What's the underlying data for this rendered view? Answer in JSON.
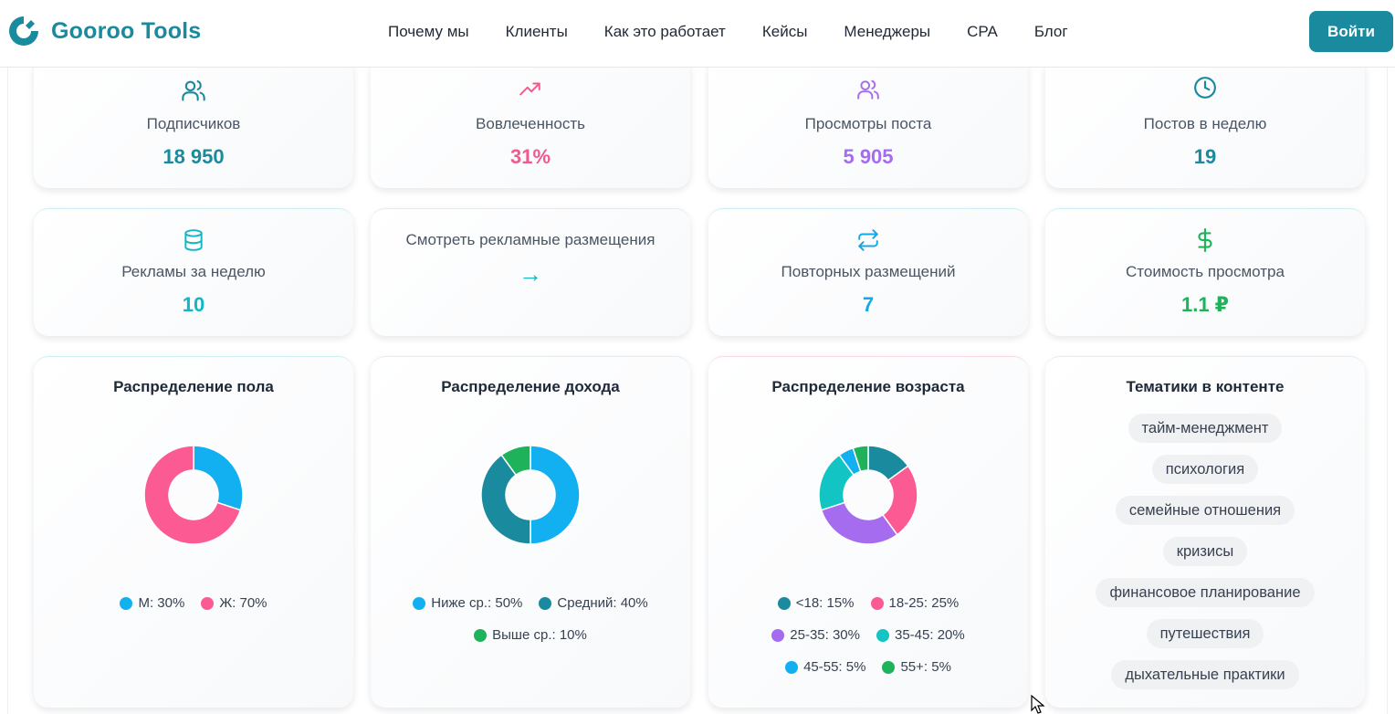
{
  "header": {
    "brand": "Gooroo Tools",
    "nav": [
      "Почему мы",
      "Клиенты",
      "Как это работает",
      "Кейсы",
      "Менеджеры",
      "CPA",
      "Блог"
    ],
    "login": "Войти"
  },
  "stats": [
    {
      "label": "Подписчиков",
      "value": "18 950",
      "color": "#1a8a9e",
      "icon": "users-icon"
    },
    {
      "label": "Вовлеченность",
      "value": "31%",
      "color": "#f05a8d",
      "icon": "trending-up-icon"
    },
    {
      "label": "Просмотры поста",
      "value": "5 905",
      "color": "#a56cf0",
      "icon": "users-icon"
    },
    {
      "label": "Постов в неделю",
      "value": "19",
      "color": "#1a8a9e",
      "icon": "clock-icon"
    },
    {
      "label": "Рекламы за неделю",
      "value": "10",
      "color": "#12b6c4",
      "icon": "database-icon"
    },
    {
      "label": "Смотреть рекламные размещения",
      "value": "→",
      "color": "#12b6c4",
      "icon": "arrow-right-icon"
    },
    {
      "label": "Повторных размещений",
      "value": "7",
      "color": "#12a9e8",
      "icon": "repeat-icon"
    },
    {
      "label": "Стоимость просмотра",
      "value": "1.1 ₽",
      "color": "#1eb35a",
      "icon": "dollar-icon"
    }
  ],
  "chart_data": [
    {
      "type": "pie",
      "title": "Распределение пола",
      "categories": [
        "М",
        "Ж"
      ],
      "values": [
        30,
        70
      ],
      "colors": [
        "#12b0f0",
        "#fb5b92"
      ],
      "legend": [
        "М: 30%",
        "Ж: 70%"
      ]
    },
    {
      "type": "pie",
      "title": "Распределение дохода",
      "categories": [
        "Ниже ср.",
        "Средний",
        "Выше ср."
      ],
      "values": [
        50,
        40,
        10
      ],
      "colors": [
        "#12b0f0",
        "#1a8a9e",
        "#1eb35a"
      ],
      "legend": [
        "Ниже ср.: 50%",
        "Средний: 40%",
        "Выше ср.: 10%"
      ]
    },
    {
      "type": "pie",
      "title": "Распределение возраста",
      "categories": [
        "<18",
        "18-25",
        "25-35",
        "35-45",
        "45-55",
        "55+"
      ],
      "values": [
        15,
        25,
        30,
        20,
        5,
        5
      ],
      "colors": [
        "#1a8a9e",
        "#fb5b92",
        "#a56cf0",
        "#12c4c4",
        "#12b0f0",
        "#1eb35a"
      ],
      "legend": [
        "<18: 15%",
        "18-25: 25%",
        "25-35: 30%",
        "35-45: 20%",
        "45-55: 5%",
        "55+: 5%"
      ]
    }
  ],
  "topics": {
    "title": "Тематики в контенте",
    "tags": [
      "тайм-менеджмент",
      "психология",
      "семейные отношения",
      "кризисы",
      "финансовое планирование",
      "путешествия",
      "дыхательные практики"
    ]
  }
}
